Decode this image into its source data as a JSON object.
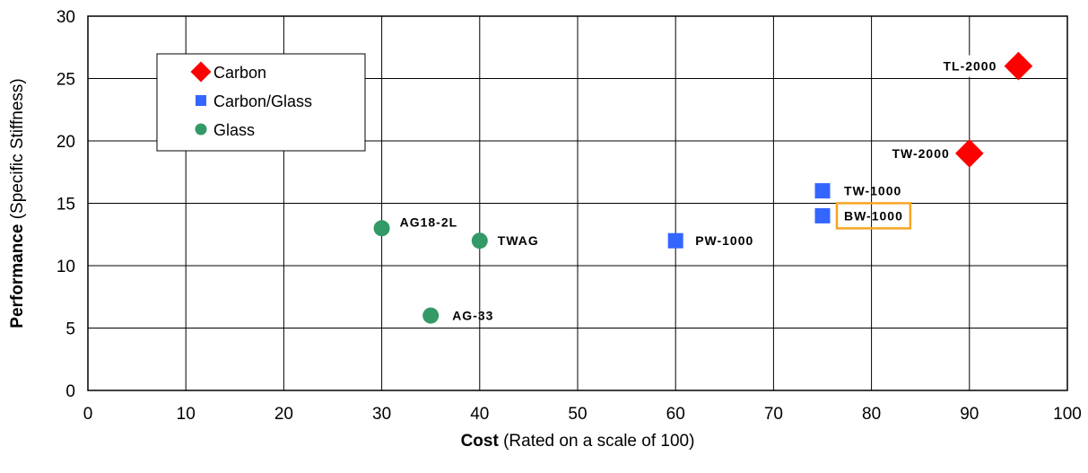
{
  "chart_data": {
    "type": "scatter",
    "title": "",
    "xlabel_bold": "Cost",
    "xlabel_rest": " (Rated on a scale of 100)",
    "ylabel_bold": "Performance",
    "ylabel_rest": " (Specific Stiffness)",
    "xlim": [
      0,
      100
    ],
    "ylim": [
      0,
      30
    ],
    "xticks": [
      0,
      10,
      20,
      30,
      40,
      50,
      60,
      70,
      80,
      90,
      100
    ],
    "yticks": [
      0,
      5,
      10,
      15,
      20,
      25,
      30
    ],
    "grid": true,
    "legend_placement": "top-left",
    "series": [
      {
        "name": "Carbon",
        "marker": "diamond",
        "color": "#ff0000",
        "points": [
          {
            "x": 95,
            "y": 26,
            "label": "TL-2000"
          },
          {
            "x": 90,
            "y": 19,
            "label": "TW-2000"
          }
        ]
      },
      {
        "name": "Carbon/Glass",
        "marker": "square",
        "color": "#3366ff",
        "points": [
          {
            "x": 75,
            "y": 16,
            "label": "TW-1000"
          },
          {
            "x": 75,
            "y": 14,
            "label": "BW-1000",
            "highlight": true
          },
          {
            "x": 60,
            "y": 12,
            "label": "PW-1000"
          }
        ]
      },
      {
        "name": "Glass",
        "marker": "circle",
        "color": "#339966",
        "points": [
          {
            "x": 30,
            "y": 13,
            "label": "AG18-2L"
          },
          {
            "x": 40,
            "y": 12,
            "label": "TWAG"
          },
          {
            "x": 35,
            "y": 6,
            "label": "AG-33"
          }
        ]
      }
    ],
    "highlight_color": "#f5a623"
  }
}
